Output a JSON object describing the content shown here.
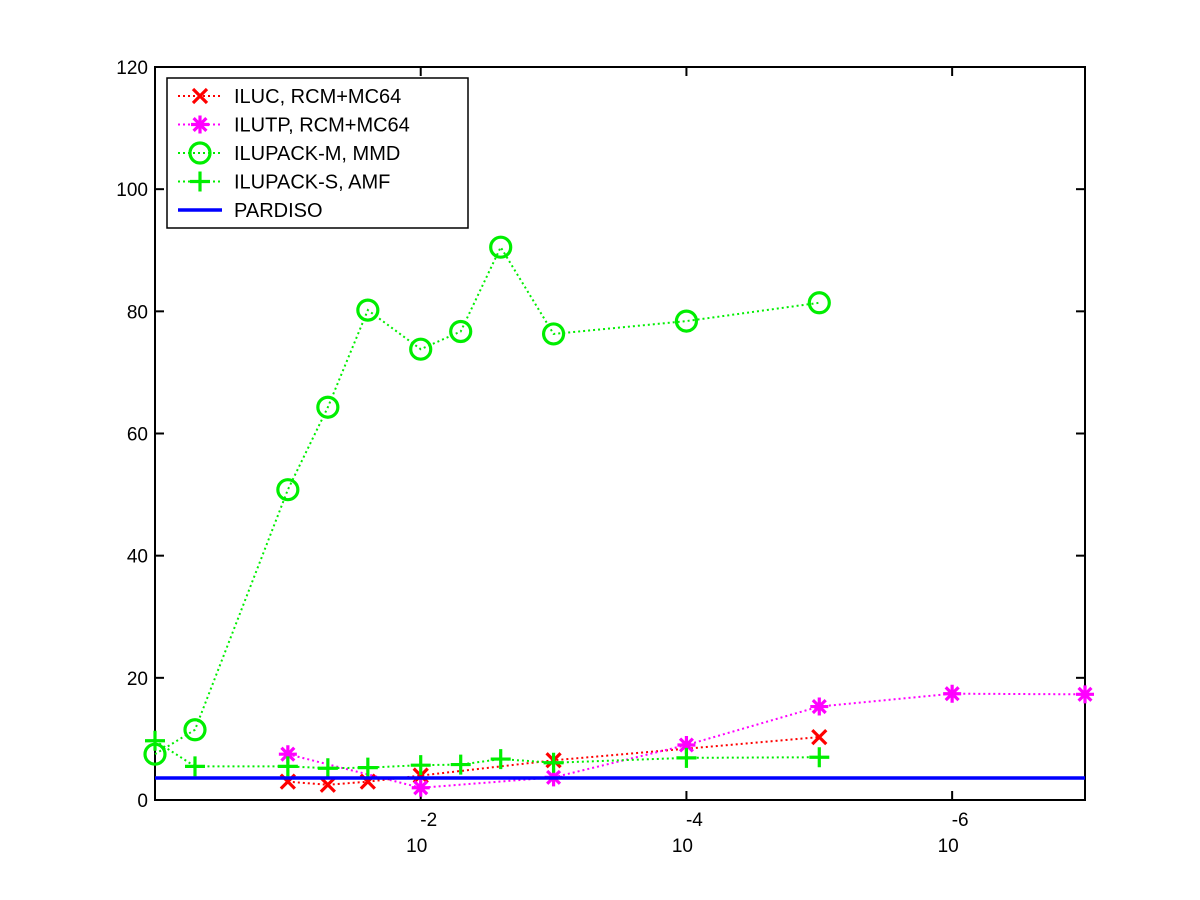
{
  "chart_data": {
    "type": "line",
    "xscale": "log",
    "xlim": [
      1,
      1e-07
    ],
    "ylim": [
      0,
      120
    ],
    "yticks": [
      0,
      20,
      40,
      60,
      80,
      100,
      120
    ],
    "xticks": [
      {
        "value": 0.01,
        "base": "10",
        "exp": "-2"
      },
      {
        "value": 0.0001,
        "base": "10",
        "exp": "-4"
      },
      {
        "value": 1e-06,
        "base": "10",
        "exp": "-6"
      }
    ],
    "legend_position": "top-left",
    "grid": false,
    "series": [
      {
        "name": "ILUC, RCM+MC64",
        "color": "#ff0000",
        "marker": "x",
        "linestyle": "dotted",
        "x": [
          0.1,
          0.05,
          0.025,
          0.01,
          0.001,
          1e-05
        ],
        "y": [
          3.0,
          2.5,
          3.0,
          4.0,
          6.5,
          10.3
        ]
      },
      {
        "name": "ILUTP, RCM+MC64",
        "color": "#ff00ff",
        "marker": "asterisk",
        "linestyle": "dotted",
        "x": [
          0.1,
          0.01,
          0.001,
          0.0001,
          1e-05,
          1e-06,
          1e-07
        ],
        "y": [
          7.5,
          2.0,
          3.7,
          9.0,
          15.3,
          17.4,
          17.3
        ]
      },
      {
        "name": "ILUPACK-M, MMD",
        "color": "#00ee00",
        "marker": "circle",
        "linestyle": "dotted",
        "x": [
          1,
          0.5,
          0.1,
          0.05,
          0.025,
          0.01,
          0.005,
          0.0025,
          0.001,
          0.0001,
          1e-05
        ],
        "y": [
          7.5,
          11.5,
          50.8,
          64.3,
          80.2,
          73.8,
          76.7,
          90.5,
          76.3,
          78.4,
          81.4
        ]
      },
      {
        "name": "ILUPACK-S, AMF",
        "color": "#00ee00",
        "marker": "plus",
        "linestyle": "dotted",
        "x": [
          1,
          0.5,
          0.1,
          0.05,
          0.025,
          0.01,
          0.005,
          0.0025,
          0.001,
          0.0001,
          1e-05
        ],
        "y": [
          9.7,
          5.5,
          5.5,
          5.2,
          5.3,
          5.7,
          5.8,
          6.7,
          6.1,
          6.9,
          7.0
        ]
      },
      {
        "name": "PARDISO",
        "color": "#0000ff",
        "marker": "none",
        "linestyle": "solid",
        "x": [
          1,
          1e-07
        ],
        "y": [
          3.6,
          3.6
        ]
      }
    ]
  }
}
